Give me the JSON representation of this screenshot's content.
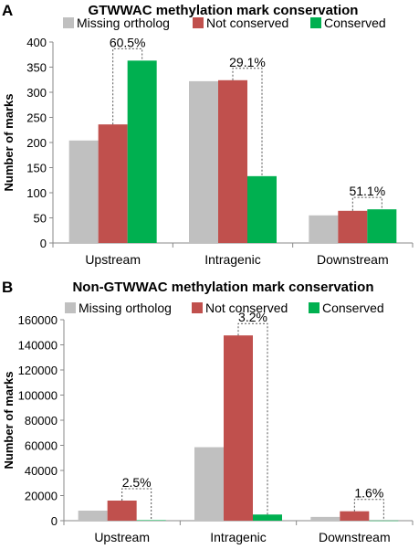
{
  "chart_data": [
    {
      "panel": "A",
      "type": "bar",
      "title": "GTWWAC methylation mark conservation",
      "xlabel": "",
      "ylabel": "Number of marks",
      "categories": [
        "Upstream",
        "Intragenic",
        "Downstream"
      ],
      "series": [
        {
          "name": "Missing ortholog",
          "color": "#c0c0c0",
          "values": [
            204,
            322,
            55
          ]
        },
        {
          "name": "Not conserved",
          "color": "#c0504d",
          "values": [
            236,
            324,
            64
          ]
        },
        {
          "name": "Conserved",
          "color": "#00b050",
          "values": [
            363,
            133,
            67
          ]
        }
      ],
      "ylim": [
        0,
        400
      ],
      "yticks": [
        "0",
        "50",
        "100",
        "150",
        "200",
        "250",
        "300",
        "350",
        "400"
      ],
      "annotations": [
        "60.5%",
        "29.1%",
        "51.1%"
      ],
      "legend": "top",
      "grid": false
    },
    {
      "panel": "B",
      "type": "bar",
      "title": "Non-GTWWAC methylation mark conservation",
      "xlabel": "",
      "ylabel": "Number of marks",
      "categories": [
        "Upstream",
        "Intragenic",
        "Downstream"
      ],
      "series": [
        {
          "name": "Missing ortholog",
          "color": "#c0c0c0",
          "values": [
            8000,
            58500,
            3000
          ]
        },
        {
          "name": "Not conserved",
          "color": "#c0504d",
          "values": [
            16000,
            147500,
            7500
          ]
        },
        {
          "name": "Conserved",
          "color": "#00b050",
          "values": [
            400,
            4900,
            120
          ]
        }
      ],
      "ylim": [
        0,
        160000
      ],
      "yticks": [
        "0",
        "20000",
        "40000",
        "60000",
        "80000",
        "100000",
        "120000",
        "140000",
        "160000"
      ],
      "annotations": [
        "2.5%",
        "3.2%",
        "1.6%"
      ],
      "legend": "top",
      "grid": false
    }
  ]
}
